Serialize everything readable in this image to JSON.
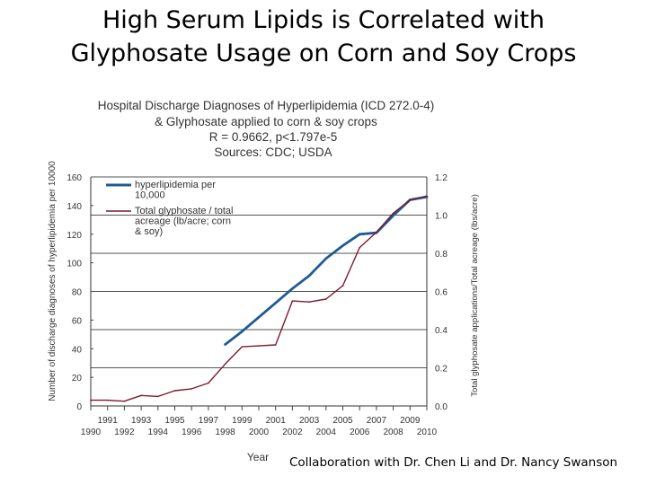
{
  "slide": {
    "title_line1": "High Serum Lipids is Correlated with",
    "title_line2": "Glyphosate Usage on Corn and Soy Crops",
    "footer": "Collaboration with Dr. Chen Li and Dr. Nancy Swanson"
  },
  "chart_data": {
    "type": "line",
    "title_lines": [
      "Hospital Discharge Diagnoses of Hyperlipidemia (ICD 272.0-4)",
      "& Glyphosate applied to corn & soy crops",
      "R = 0.9662, p<1.797e-5",
      "Sources: CDC; USDA"
    ],
    "xlabel": "Year",
    "ylabel_left": "Number of discharge diagnoses of hyperlipidemia per 10000",
    "ylabel_right": "Total glyphosate applications/Total acreage (lbs/acre)",
    "xlim": [
      1990,
      2010
    ],
    "ylim_left": [
      0,
      160
    ],
    "ylim_right": [
      0,
      1.2
    ],
    "x_ticks_top": [
      "1991",
      "1993",
      "1995",
      "1997",
      "1999",
      "2001",
      "2003",
      "2005",
      "2007",
      "2009"
    ],
    "x_ticks_bottom": [
      "1990",
      "1992",
      "1994",
      "1996",
      "1998",
      "2000",
      "2002",
      "2004",
      "2006",
      "2008",
      "2010"
    ],
    "y_ticks_left": [
      "0",
      "20",
      "40",
      "60",
      "80",
      "100",
      "120",
      "140",
      "160"
    ],
    "y_ticks_right": [
      "0.0",
      "0.2",
      "0.4",
      "0.6",
      "0.8",
      "1.0",
      "1.2"
    ],
    "grid": true,
    "legend_position": "top-left",
    "series": [
      {
        "name": "hyperlipidemia per 10,000",
        "axis": "left",
        "color": "#1f5a96",
        "x": [
          1998,
          1999,
          2000,
          2001,
          2002,
          2003,
          2004,
          2005,
          2006,
          2007,
          2008,
          2009,
          2010
        ],
        "y": [
          43,
          52,
          62,
          72,
          82,
          91,
          103,
          112,
          120,
          121,
          133,
          144,
          146
        ]
      },
      {
        "name": "Total glyphosate / total acreage (lb/acre; corn & soy)",
        "axis": "right",
        "color": "#7a1a2e",
        "x": [
          1990,
          1991,
          1992,
          1993,
          1994,
          1995,
          1996,
          1997,
          1998,
          1999,
          2000,
          2001,
          2002,
          2003,
          2004,
          2005,
          2006,
          2007,
          2008,
          2009,
          2010
        ],
        "y": [
          0.03,
          0.03,
          0.025,
          0.055,
          0.05,
          0.08,
          0.09,
          0.12,
          0.22,
          0.31,
          0.315,
          0.32,
          0.55,
          0.545,
          0.56,
          0.63,
          0.83,
          0.91,
          1.01,
          1.08,
          1.1
        ]
      }
    ],
    "legend_labels": [
      [
        "hyperlipidemia per",
        "10,000"
      ],
      [
        "Total glyphosate / total",
        "acreage (lb/acre; corn",
        "& soy)"
      ]
    ]
  }
}
